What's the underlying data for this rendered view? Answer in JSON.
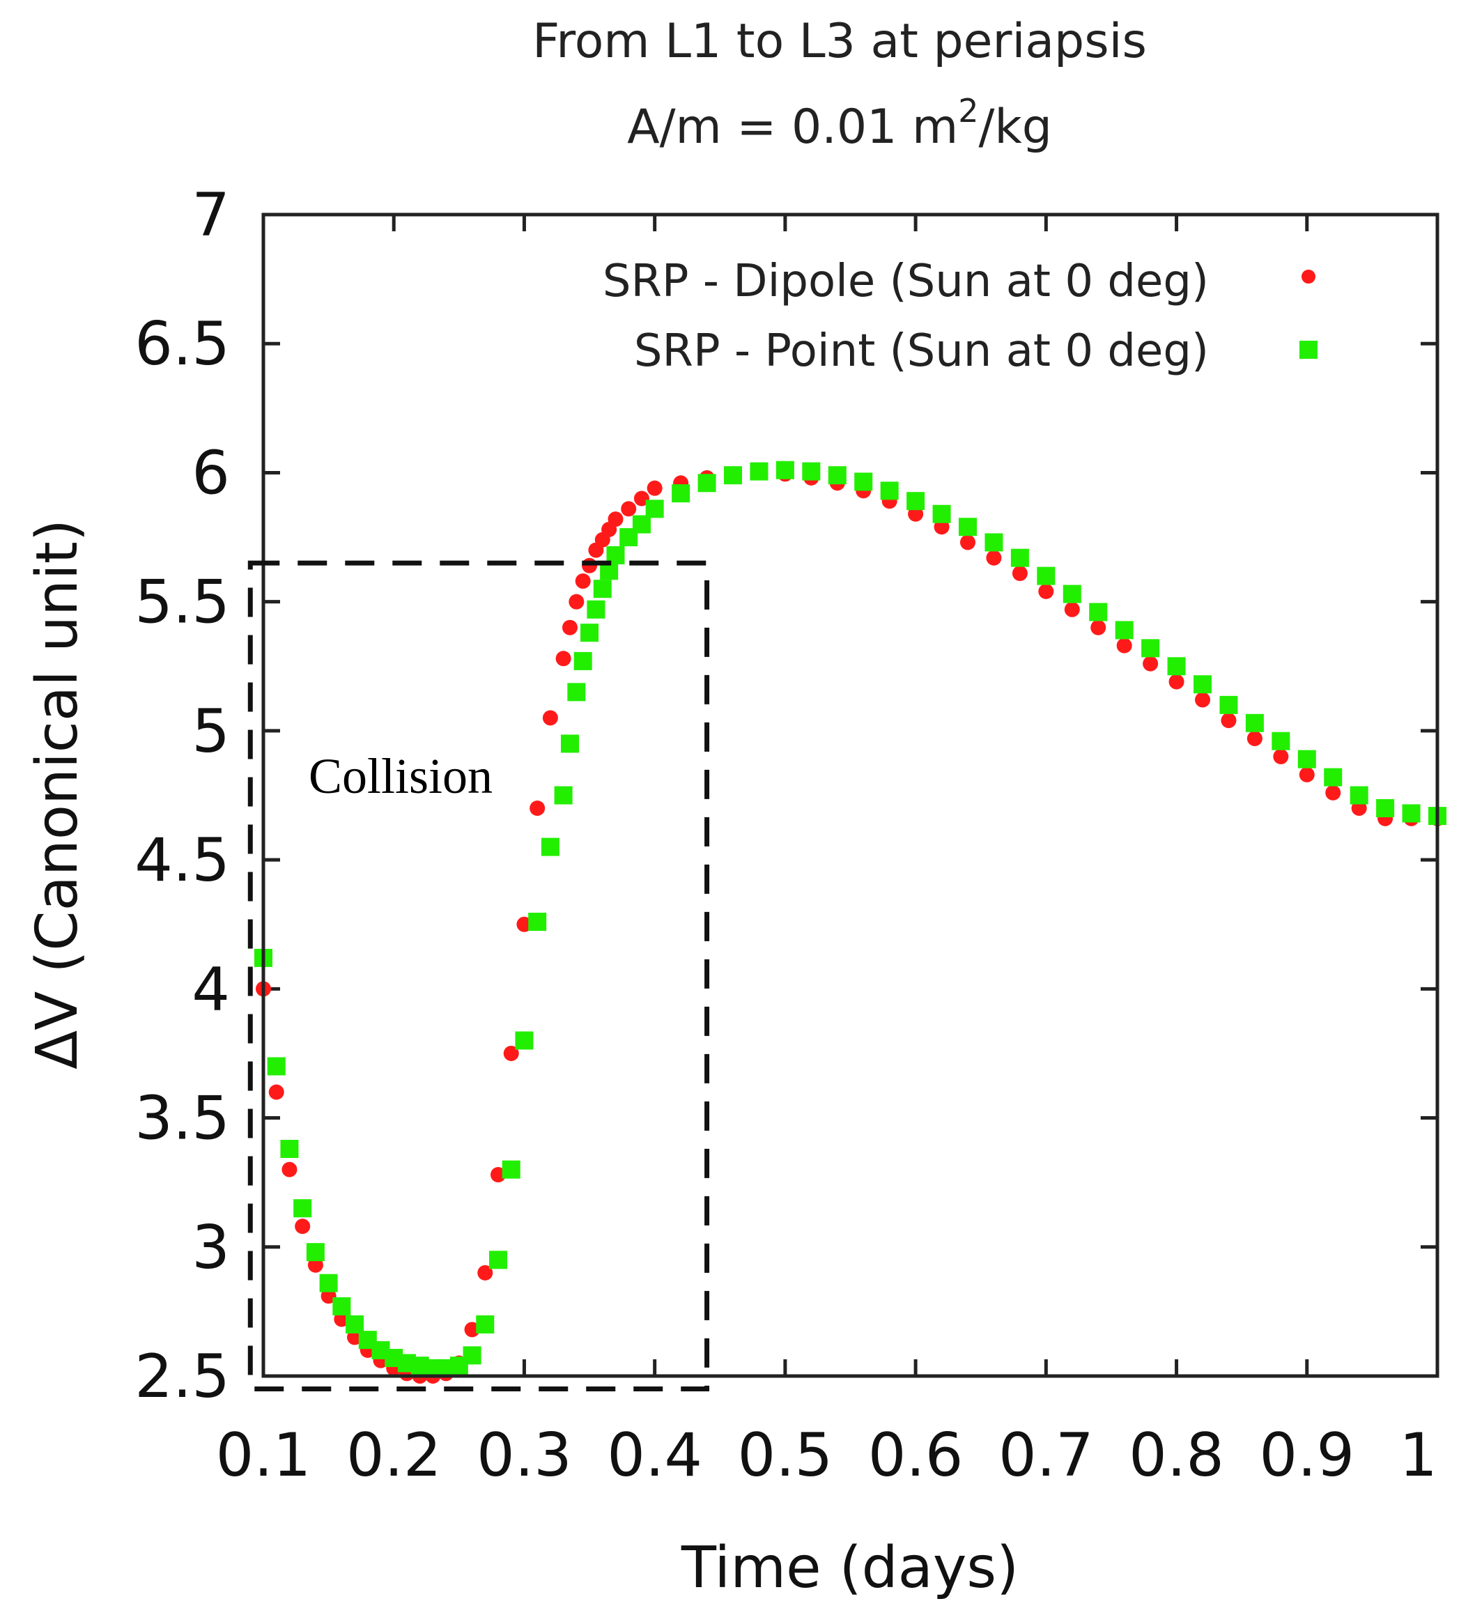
{
  "chart_data": {
    "type": "scatter",
    "title_line1": "From L1 to L3 at periapsis",
    "title_line2_prefix": "A/m = 0.01 m",
    "title_line2_sup": "2",
    "title_line2_suffix": "/kg",
    "xlabel": "Time (days)",
    "ylabel": "ΔV (Canonical unit)",
    "xlim": [
      0.1,
      1.0
    ],
    "ylim": [
      2.5,
      7.0
    ],
    "xticks": [
      "0.1",
      "0.2",
      "0.3",
      "0.4",
      "0.5",
      "0.6",
      "0.7",
      "0.8",
      "0.9",
      "1"
    ],
    "yticks": [
      "2.5",
      "3",
      "3.5",
      "4",
      "4.5",
      "5",
      "5.5",
      "6",
      "6.5",
      "7"
    ],
    "legend_position": "top-right",
    "series": [
      {
        "name": "SRP - Dipole (Sun at 0 deg)",
        "color": "#ff1a1a",
        "marker": "circle",
        "x": [
          0.1,
          0.11,
          0.12,
          0.13,
          0.14,
          0.15,
          0.16,
          0.17,
          0.18,
          0.19,
          0.2,
          0.21,
          0.22,
          0.23,
          0.24,
          0.25,
          0.26,
          0.27,
          0.28,
          0.29,
          0.3,
          0.31,
          0.32,
          0.33,
          0.335,
          0.34,
          0.345,
          0.35,
          0.355,
          0.36,
          0.365,
          0.37,
          0.38,
          0.39,
          0.4,
          0.42,
          0.44,
          0.46,
          0.48,
          0.5,
          0.52,
          0.54,
          0.56,
          0.58,
          0.6,
          0.62,
          0.64,
          0.66,
          0.68,
          0.7,
          0.72,
          0.74,
          0.76,
          0.78,
          0.8,
          0.82,
          0.84,
          0.86,
          0.88,
          0.9,
          0.92,
          0.94,
          0.96,
          0.98,
          1.0
        ],
        "y": [
          4.0,
          3.6,
          3.3,
          3.08,
          2.93,
          2.81,
          2.72,
          2.65,
          2.6,
          2.56,
          2.53,
          2.51,
          2.5,
          2.5,
          2.51,
          2.55,
          2.68,
          2.9,
          3.28,
          3.75,
          4.25,
          4.7,
          5.05,
          5.28,
          5.4,
          5.5,
          5.58,
          5.64,
          5.7,
          5.74,
          5.78,
          5.82,
          5.86,
          5.9,
          5.94,
          5.96,
          5.98,
          5.995,
          6.0,
          5.995,
          5.98,
          5.96,
          5.93,
          5.89,
          5.84,
          5.79,
          5.73,
          5.67,
          5.61,
          5.54,
          5.47,
          5.4,
          5.33,
          5.26,
          5.19,
          5.12,
          5.04,
          4.97,
          4.9,
          4.83,
          4.76,
          4.7,
          4.66,
          4.66,
          4.66
        ]
      },
      {
        "name": "SRP - Point (Sun at 0 deg)",
        "color": "#22ee00",
        "marker": "square",
        "x": [
          0.1,
          0.11,
          0.12,
          0.13,
          0.14,
          0.15,
          0.16,
          0.17,
          0.18,
          0.19,
          0.2,
          0.21,
          0.22,
          0.23,
          0.24,
          0.25,
          0.26,
          0.27,
          0.28,
          0.29,
          0.3,
          0.31,
          0.32,
          0.33,
          0.335,
          0.34,
          0.345,
          0.35,
          0.355,
          0.36,
          0.365,
          0.37,
          0.38,
          0.39,
          0.4,
          0.42,
          0.44,
          0.46,
          0.48,
          0.5,
          0.52,
          0.54,
          0.56,
          0.58,
          0.6,
          0.62,
          0.64,
          0.66,
          0.68,
          0.7,
          0.72,
          0.74,
          0.76,
          0.78,
          0.8,
          0.82,
          0.84,
          0.86,
          0.88,
          0.9,
          0.92,
          0.94,
          0.96,
          0.98,
          1.0
        ],
        "y": [
          4.12,
          3.7,
          3.38,
          3.15,
          2.98,
          2.86,
          2.77,
          2.7,
          2.64,
          2.6,
          2.57,
          2.55,
          2.54,
          2.53,
          2.53,
          2.54,
          2.58,
          2.7,
          2.95,
          3.3,
          3.8,
          4.26,
          4.55,
          4.75,
          4.95,
          5.15,
          5.27,
          5.38,
          5.47,
          5.55,
          5.62,
          5.68,
          5.75,
          5.8,
          5.86,
          5.92,
          5.96,
          5.99,
          6.005,
          6.01,
          6.005,
          5.99,
          5.965,
          5.93,
          5.89,
          5.84,
          5.79,
          5.73,
          5.67,
          5.6,
          5.53,
          5.46,
          5.39,
          5.32,
          5.25,
          5.18,
          5.1,
          5.03,
          4.96,
          4.89,
          4.82,
          4.75,
          4.7,
          4.68,
          4.67
        ]
      }
    ],
    "annotation": {
      "text": "Collision",
      "box_x_range": [
        0.09,
        0.44
      ],
      "box_y_range": [
        2.45,
        5.65
      ]
    }
  }
}
